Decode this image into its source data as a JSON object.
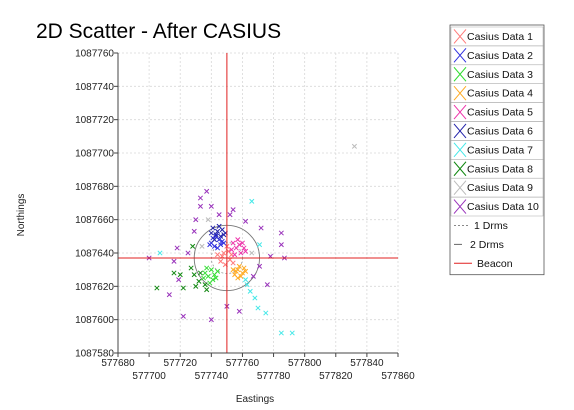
{
  "chart_data": {
    "type": "scatter",
    "title": "2D Scatter - After CASIUS",
    "xlabel": "Eastings",
    "ylabel": "Northings",
    "xlim": [
      577680,
      577860
    ],
    "ylim": [
      1087580,
      1087760
    ],
    "x_ticks_low": [
      577680,
      577720,
      577760,
      577800,
      577840
    ],
    "x_ticks_high": [
      577700,
      577740,
      577780,
      577820,
      577860
    ],
    "y_ticks": [
      1087760,
      1087740,
      1087720,
      1087700,
      1087680,
      1087660,
      1087640,
      1087620,
      1087600,
      1087580
    ],
    "grid": true,
    "legend_position": "right",
    "beacon": {
      "x": 577750,
      "y": 1087637,
      "color": "#e02020",
      "label": "Beacon"
    },
    "drms": {
      "one_drms_label": "1 Drms",
      "two_drms_label": "2 Drms",
      "one_radius": 10,
      "two_radius": 21
    },
    "series": [
      {
        "name": "Casius Data 1",
        "color": "#ff7a7a",
        "points": [
          [
            577748,
            1087640
          ],
          [
            577752,
            1087636
          ],
          [
            577746,
            1087635
          ],
          [
            577751,
            1087641
          ],
          [
            577749,
            1087633
          ],
          [
            577753,
            1087639
          ],
          [
            577747,
            1087638
          ],
          [
            577750,
            1087644
          ],
          [
            577744,
            1087639
          ],
          [
            577754,
            1087634
          ]
        ]
      },
      {
        "name": "Casius Data 2",
        "color": "#3030e0",
        "points": [
          [
            577742,
            1087644
          ],
          [
            577745,
            1087648
          ],
          [
            577740,
            1087646
          ],
          [
            577744,
            1087643
          ],
          [
            577747,
            1087647
          ],
          [
            577741,
            1087649
          ],
          [
            577746,
            1087645
          ],
          [
            577743,
            1087650
          ],
          [
            577739,
            1087645
          ],
          [
            577748,
            1087646
          ]
        ]
      },
      {
        "name": "Casius Data 3",
        "color": "#33dd33",
        "points": [
          [
            577740,
            1087630
          ],
          [
            577738,
            1087626
          ],
          [
            577742,
            1087627
          ],
          [
            577736,
            1087628
          ],
          [
            577741,
            1087624
          ],
          [
            577744,
            1087629
          ],
          [
            577737,
            1087631
          ],
          [
            577739,
            1087622
          ],
          [
            577743,
            1087625
          ],
          [
            577735,
            1087625
          ]
        ]
      },
      {
        "name": "Casius Data 4",
        "color": "#ffaa22",
        "points": [
          [
            577757,
            1087630
          ],
          [
            577760,
            1087628
          ],
          [
            577755,
            1087627
          ],
          [
            577758,
            1087632
          ],
          [
            577761,
            1087631
          ],
          [
            577756,
            1087629
          ],
          [
            577759,
            1087626
          ],
          [
            577762,
            1087629
          ],
          [
            577754,
            1087630
          ],
          [
            577757,
            1087625
          ]
        ]
      },
      {
        "name": "Casius Data 5",
        "color": "#ee33aa",
        "points": [
          [
            577756,
            1087643
          ],
          [
            577759,
            1087640
          ],
          [
            577754,
            1087646
          ],
          [
            577758,
            1087645
          ],
          [
            577755,
            1087639
          ],
          [
            577761,
            1087643
          ],
          [
            577757,
            1087648
          ],
          [
            577753,
            1087642
          ],
          [
            577760,
            1087646
          ],
          [
            577762,
            1087641
          ]
        ]
      },
      {
        "name": "Casius Data 6",
        "color": "#2222aa",
        "points": [
          [
            577743,
            1087651
          ],
          [
            577746,
            1087650
          ],
          [
            577741,
            1087655
          ],
          [
            577744,
            1087653
          ],
          [
            577748,
            1087651
          ],
          [
            577740,
            1087652
          ],
          [
            577745,
            1087656
          ],
          [
            577747,
            1087654
          ],
          [
            577742,
            1087648
          ],
          [
            577749,
            1087652
          ]
        ]
      },
      {
        "name": "Casius Data 7",
        "color": "#44e8e8",
        "points": [
          [
            577763,
            1087621
          ],
          [
            577765,
            1087617
          ],
          [
            577768,
            1087613
          ],
          [
            577762,
            1087624
          ],
          [
            577770,
            1087607
          ],
          [
            577775,
            1087604
          ],
          [
            577785,
            1087592
          ],
          [
            577792,
            1087592
          ],
          [
            577707,
            1087640
          ],
          [
            577766,
            1087671
          ],
          [
            577771,
            1087645
          ]
        ]
      },
      {
        "name": "Casius Data 8",
        "color": "#118811",
        "points": [
          [
            577733,
            1087628
          ],
          [
            577729,
            1087627
          ],
          [
            577732,
            1087623
          ],
          [
            577727,
            1087631
          ],
          [
            577736,
            1087621
          ],
          [
            577720,
            1087627
          ],
          [
            577716,
            1087628
          ],
          [
            577705,
            1087619
          ],
          [
            577722,
            1087619
          ],
          [
            577728,
            1087644
          ],
          [
            577737,
            1087618
          ],
          [
            577730,
            1087620
          ]
        ]
      },
      {
        "name": "Casius Data 9",
        "color": "#bbbbbb",
        "points": [
          [
            577832,
            1087704
          ],
          [
            577734,
            1087644
          ],
          [
            577738,
            1087660
          ],
          [
            577766,
            1087640
          ]
        ]
      },
      {
        "name": "Casius Data 10",
        "color": "#9933bb",
        "points": [
          [
            577737,
            1087677
          ],
          [
            577733,
            1087673
          ],
          [
            577740,
            1087668
          ],
          [
            577745,
            1087663
          ],
          [
            577752,
            1087663
          ],
          [
            577762,
            1087659
          ],
          [
            577772,
            1087655
          ],
          [
            577785,
            1087652
          ],
          [
            577785,
            1087645
          ],
          [
            577787,
            1087637
          ],
          [
            577778,
            1087638
          ],
          [
            577771,
            1087632
          ],
          [
            577767,
            1087626
          ],
          [
            577776,
            1087621
          ],
          [
            577725,
            1087640
          ],
          [
            577718,
            1087643
          ],
          [
            577716,
            1087635
          ],
          [
            577719,
            1087624
          ],
          [
            577713,
            1087615
          ],
          [
            577700,
            1087637
          ],
          [
            577722,
            1087602
          ],
          [
            577740,
            1087600
          ],
          [
            577750,
            1087608
          ],
          [
            577758,
            1087605
          ],
          [
            577730,
            1087660
          ],
          [
            577729,
            1087653
          ],
          [
            577754,
            1087666
          ],
          [
            577733,
            1087668
          ]
        ]
      }
    ]
  }
}
